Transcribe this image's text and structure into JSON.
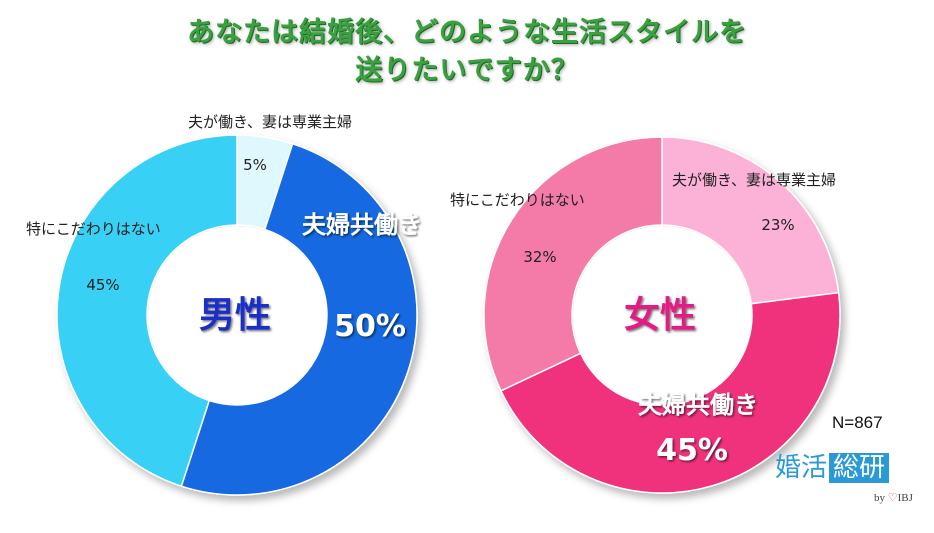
{
  "title": {
    "line1": "あなたは結婚後、どのような生活スタイルを",
    "line2": "送りたいですか？"
  },
  "sample_size": "N=867",
  "logo": {
    "part1": "婚活",
    "part2": "総研",
    "by": "by",
    "heart": "♡",
    "brand": "IBJ"
  },
  "chart_data": [
    {
      "type": "pie",
      "center_label": "男性",
      "categories": [
        "夫が働き、妻は専業主婦",
        "夫婦共働き",
        "特にこだわりはない"
      ],
      "values": [
        5,
        50,
        45
      ],
      "value_labels": [
        "5%",
        "50%",
        "45%"
      ],
      "colors": [
        "#dff8fd",
        "#1569e0",
        "#38d0f5"
      ],
      "center_label_color": "#1a2fc8"
    },
    {
      "type": "pie",
      "center_label": "女性",
      "categories": [
        "夫が働き、妻は専業主婦",
        "夫婦共働き",
        "特にこだわりはない"
      ],
      "values": [
        23,
        45,
        32
      ],
      "value_labels": [
        "23%",
        "45%",
        "32%"
      ],
      "colors": [
        "#fbb2d6",
        "#f0317c",
        "#f47aa8"
      ],
      "center_label_color": "#e21d83"
    }
  ]
}
